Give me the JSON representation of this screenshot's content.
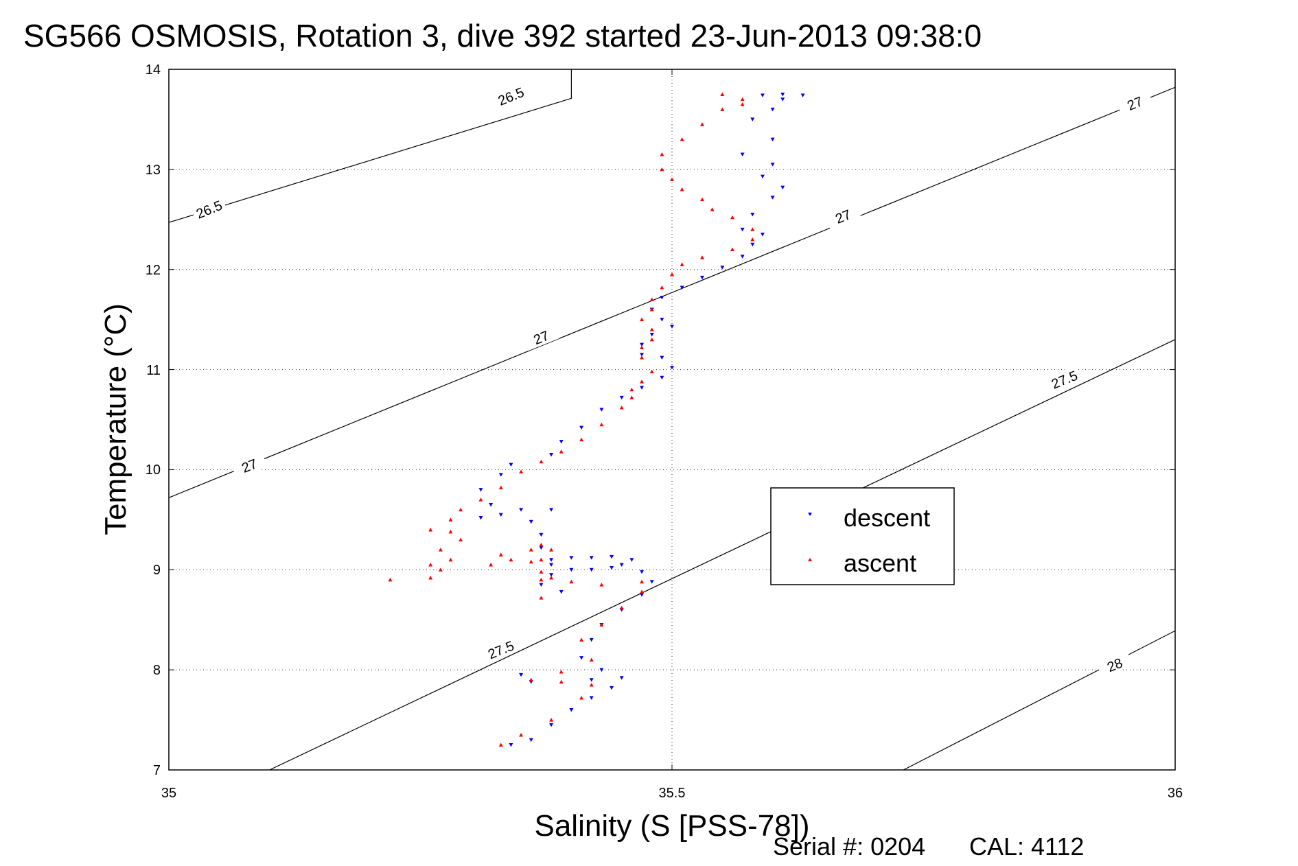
{
  "chart_data": {
    "type": "scatter",
    "title": "SG566 OSMOSIS, Rotation 3, dive 392 started 23-Jun-2013 09:38:0",
    "xlabel": "Salinity (S [PSS-78])",
    "ylabel": "Temperature (°C)",
    "xlim": [
      35,
      36
    ],
    "ylim": [
      7,
      14
    ],
    "xticks": [
      "35",
      "35.5",
      "36"
    ],
    "yticks": [
      "7",
      "8",
      "9",
      "10",
      "11",
      "12",
      "13",
      "14"
    ],
    "grid": true,
    "legend_position": "right",
    "density_contours": [
      {
        "label": "26.5",
        "points": [
          [
            35.0,
            12.47
          ],
          [
            35.4,
            13.71
          ],
          [
            35.4,
            14.0
          ]
        ]
      },
      {
        "label": "27",
        "points": [
          [
            35.0,
            9.72
          ],
          [
            36.0,
            13.82
          ]
        ]
      },
      {
        "label": "27.5",
        "points": [
          [
            35.1,
            7.0
          ],
          [
            36.0,
            11.3
          ]
        ]
      },
      {
        "label": "28",
        "points": [
          [
            35.73,
            7.0
          ],
          [
            36.0,
            8.39
          ]
        ]
      }
    ],
    "contour_labels": [
      {
        "text": "26.5",
        "x": 35.04,
        "y": 12.6
      },
      {
        "text": "26.5",
        "x": 35.34,
        "y": 13.73
      },
      {
        "text": "27",
        "x": 35.08,
        "y": 10.04
      },
      {
        "text": "27",
        "x": 35.37,
        "y": 11.32
      },
      {
        "text": "27",
        "x": 35.67,
        "y": 12.53
      },
      {
        "text": "27",
        "x": 35.96,
        "y": 13.66
      },
      {
        "text": "27.5",
        "x": 35.33,
        "y": 8.2
      },
      {
        "text": "27.5",
        "x": 35.89,
        "y": 10.9
      },
      {
        "text": "28",
        "x": 35.94,
        "y": 8.05
      }
    ],
    "series": [
      {
        "name": "descent",
        "color": "#0000ff",
        "marker": "triangle-down",
        "points": [
          [
            35.34,
            7.25
          ],
          [
            35.36,
            7.3
          ],
          [
            35.38,
            7.45
          ],
          [
            35.4,
            7.6
          ],
          [
            35.42,
            7.72
          ],
          [
            35.44,
            7.82
          ],
          [
            35.45,
            7.92
          ],
          [
            35.42,
            7.9
          ],
          [
            35.36,
            7.88
          ],
          [
            35.35,
            7.95
          ],
          [
            35.43,
            8.0
          ],
          [
            35.41,
            8.12
          ],
          [
            35.42,
            8.3
          ],
          [
            35.43,
            8.45
          ],
          [
            35.45,
            8.6
          ],
          [
            35.47,
            8.75
          ],
          [
            35.48,
            8.88
          ],
          [
            35.47,
            8.98
          ],
          [
            35.45,
            9.05
          ],
          [
            35.46,
            9.1
          ],
          [
            35.44,
            9.13
          ],
          [
            35.42,
            9.12
          ],
          [
            35.4,
            9.12
          ],
          [
            35.38,
            9.1
          ],
          [
            35.4,
            9.0
          ],
          [
            35.42,
            9.0
          ],
          [
            35.44,
            9.02
          ],
          [
            35.38,
            8.95
          ],
          [
            35.37,
            8.85
          ],
          [
            35.39,
            8.78
          ],
          [
            35.38,
            9.05
          ],
          [
            35.37,
            9.22
          ],
          [
            35.37,
            9.35
          ],
          [
            35.36,
            9.48
          ],
          [
            35.38,
            9.6
          ],
          [
            35.35,
            9.6
          ],
          [
            35.33,
            9.55
          ],
          [
            35.31,
            9.52
          ],
          [
            35.32,
            9.65
          ],
          [
            35.31,
            9.8
          ],
          [
            35.33,
            9.95
          ],
          [
            35.34,
            10.05
          ],
          [
            35.38,
            10.15
          ],
          [
            35.39,
            10.28
          ],
          [
            35.41,
            10.42
          ],
          [
            35.43,
            10.6
          ],
          [
            35.45,
            10.72
          ],
          [
            35.47,
            10.82
          ],
          [
            35.49,
            10.92
          ],
          [
            35.5,
            11.02
          ],
          [
            35.49,
            11.12
          ],
          [
            35.47,
            11.15
          ],
          [
            35.47,
            11.25
          ],
          [
            35.48,
            11.35
          ],
          [
            35.5,
            11.43
          ],
          [
            35.49,
            11.5
          ],
          [
            35.48,
            11.6
          ],
          [
            35.49,
            11.72
          ],
          [
            35.51,
            11.82
          ],
          [
            35.53,
            11.92
          ],
          [
            35.55,
            12.02
          ],
          [
            35.57,
            12.13
          ],
          [
            35.58,
            12.25
          ],
          [
            35.59,
            12.35
          ],
          [
            35.57,
            12.4
          ],
          [
            35.58,
            12.55
          ],
          [
            35.6,
            12.72
          ],
          [
            35.61,
            12.82
          ],
          [
            35.59,
            12.93
          ],
          [
            35.6,
            13.05
          ],
          [
            35.57,
            13.15
          ],
          [
            35.6,
            13.3
          ],
          [
            35.58,
            13.5
          ],
          [
            35.6,
            13.6
          ],
          [
            35.61,
            13.7
          ],
          [
            35.59,
            13.74
          ],
          [
            35.61,
            13.75
          ],
          [
            35.63,
            13.74
          ]
        ]
      },
      {
        "name": "ascent",
        "color": "#ff0000",
        "marker": "triangle-up",
        "points": [
          [
            35.33,
            7.25
          ],
          [
            35.35,
            7.35
          ],
          [
            35.38,
            7.5
          ],
          [
            35.41,
            7.72
          ],
          [
            35.42,
            7.85
          ],
          [
            35.39,
            7.88
          ],
          [
            35.36,
            7.9
          ],
          [
            35.39,
            7.98
          ],
          [
            35.42,
            8.1
          ],
          [
            35.41,
            8.3
          ],
          [
            35.43,
            8.45
          ],
          [
            35.45,
            8.62
          ],
          [
            35.47,
            8.78
          ],
          [
            35.47,
            8.88
          ],
          [
            35.43,
            8.85
          ],
          [
            35.4,
            8.88
          ],
          [
            35.38,
            8.92
          ],
          [
            35.37,
            8.98
          ],
          [
            35.37,
            9.1
          ],
          [
            35.38,
            9.2
          ],
          [
            35.37,
            9.25
          ],
          [
            35.36,
            9.2
          ],
          [
            35.36,
            9.08
          ],
          [
            35.37,
            8.9
          ],
          [
            35.37,
            8.72
          ],
          [
            35.34,
            9.1
          ],
          [
            35.33,
            9.15
          ],
          [
            35.32,
            9.05
          ],
          [
            35.27,
            9.0
          ],
          [
            35.26,
            8.92
          ],
          [
            35.22,
            8.9
          ],
          [
            35.26,
            9.05
          ],
          [
            35.28,
            9.1
          ],
          [
            35.27,
            9.2
          ],
          [
            35.29,
            9.3
          ],
          [
            35.28,
            9.38
          ],
          [
            35.26,
            9.4
          ],
          [
            35.28,
            9.5
          ],
          [
            35.29,
            9.6
          ],
          [
            35.31,
            9.7
          ],
          [
            35.33,
            9.82
          ],
          [
            35.35,
            9.98
          ],
          [
            35.37,
            10.08
          ],
          [
            35.39,
            10.18
          ],
          [
            35.41,
            10.3
          ],
          [
            35.43,
            10.45
          ],
          [
            35.45,
            10.62
          ],
          [
            35.46,
            10.72
          ],
          [
            35.46,
            10.8
          ],
          [
            35.47,
            10.88
          ],
          [
            35.48,
            10.98
          ],
          [
            35.47,
            11.12
          ],
          [
            35.47,
            11.22
          ],
          [
            35.48,
            11.3
          ],
          [
            35.48,
            11.4
          ],
          [
            35.47,
            11.5
          ],
          [
            35.48,
            11.6
          ],
          [
            35.48,
            11.7
          ],
          [
            35.49,
            11.82
          ],
          [
            35.5,
            11.95
          ],
          [
            35.51,
            12.05
          ],
          [
            35.53,
            12.12
          ],
          [
            35.56,
            12.2
          ],
          [
            35.58,
            12.3
          ],
          [
            35.58,
            12.4
          ],
          [
            35.56,
            12.52
          ],
          [
            35.54,
            12.6
          ],
          [
            35.53,
            12.7
          ],
          [
            35.51,
            12.8
          ],
          [
            35.5,
            12.9
          ],
          [
            35.49,
            13.0
          ],
          [
            35.49,
            13.15
          ],
          [
            35.51,
            13.3
          ],
          [
            35.53,
            13.45
          ],
          [
            35.55,
            13.6
          ],
          [
            35.57,
            13.65
          ],
          [
            35.55,
            13.75
          ],
          [
            35.57,
            13.7
          ]
        ]
      }
    ]
  },
  "footer": {
    "serial_label": "Serial #: 0204",
    "cal_label": "CAL: 4112"
  }
}
